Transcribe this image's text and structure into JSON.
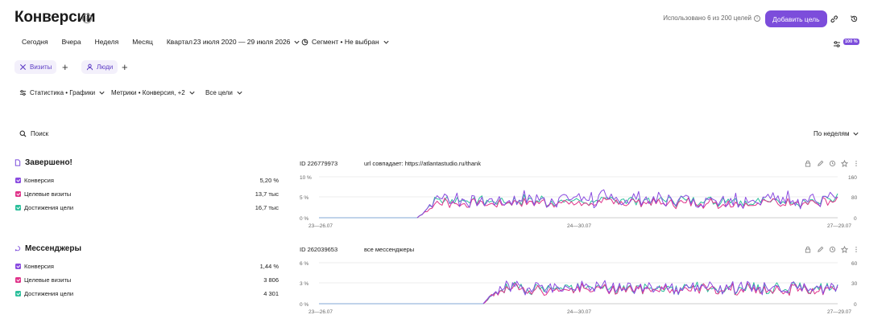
{
  "header": {
    "title": "Конверсии",
    "usage_text": "Использовано 6 из 200 целей",
    "add_goal_label": "Добавить цель"
  },
  "periods": [
    "Сегодня",
    "Вчера",
    "Неделя",
    "Месяц",
    "Квартал"
  ],
  "date_range": "23 июля 2020 — 29 июля 2026",
  "segment": "Сегмент • Не выбран",
  "sample_badge": "100 %",
  "tabs": [
    {
      "label": "Визиты",
      "icon": "visits-icon"
    },
    {
      "label": "Люди",
      "icon": "person-icon"
    }
  ],
  "filters": {
    "view": "Статистика • Графики",
    "metrics": "Метрики • Конверсия, +2",
    "goals": "Все цели"
  },
  "search_label": "Поиск",
  "grouping": "По неделям",
  "colors": {
    "conversion": "#8a4be0",
    "target_visits": "#e0338a",
    "reaches": "#2bbf9b",
    "accent": "#7c4ddb"
  },
  "goals": [
    {
      "title": "Завершено!",
      "id_label": "ID 226779973",
      "condition": "url совпадает: https://atlantastudio.ru/thank",
      "metrics": [
        {
          "label": "Конверсия",
          "value": "5,20 %"
        },
        {
          "label": "Целевые визиты",
          "value": "13,7 тыс"
        },
        {
          "label": "Достижения цели",
          "value": "16,7 тыс"
        }
      ],
      "chart": {
        "left_ticks": [
          "10 %",
          "5 %",
          "0 %"
        ],
        "right_ticks": [
          "160",
          "80",
          "0"
        ],
        "x_ticks": [
          "23—26.07",
          "24—30.07",
          "27—29.07"
        ]
      }
    },
    {
      "title": "Мессенджеры",
      "id_label": "ID 262039653",
      "condition": "все мессенджеры",
      "metrics": [
        {
          "label": "Конверсия",
          "value": "1,44 %"
        },
        {
          "label": "Целевые визиты",
          "value": "3 806"
        },
        {
          "label": "Достижения цели",
          "value": "4 301"
        }
      ],
      "chart": {
        "left_ticks": [
          "6 %",
          "3 %",
          "0 %"
        ],
        "right_ticks": [
          "60",
          "30",
          "0"
        ],
        "x_ticks": [
          "23—26.07",
          "24—30.07",
          "27—29.07"
        ]
      }
    }
  ]
}
